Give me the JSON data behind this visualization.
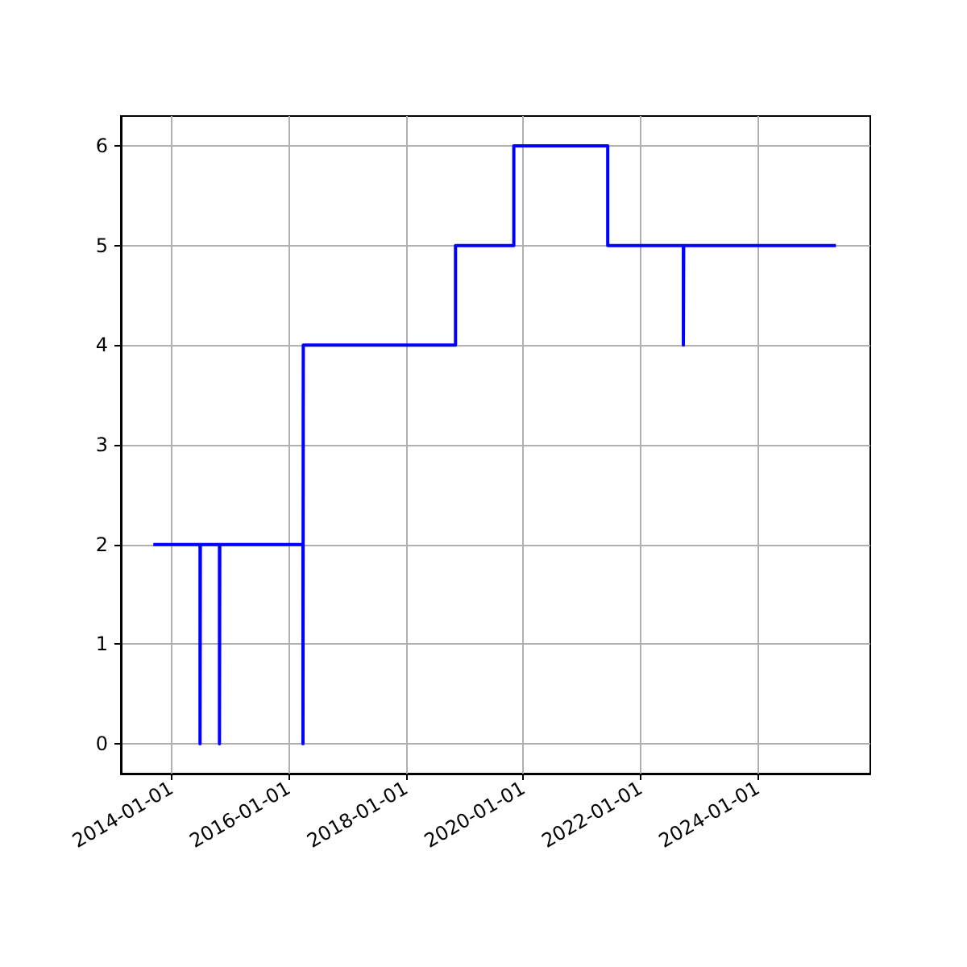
{
  "chart_data": {
    "type": "step",
    "x": [
      "2013-09-10",
      "2014-06-28",
      "2014-06-30",
      "2014-10-27",
      "2014-10-29",
      "2016-03-30",
      "2016-04-01",
      "2018-11-05",
      "2019-11-03",
      "2021-06-10",
      "2022-09-24",
      "2022-09-26",
      "2025-05-01"
    ],
    "series": [
      {
        "color": "#0000ff",
        "values": [
          2,
          0,
          2,
          0,
          2,
          0,
          4,
          5,
          6,
          5,
          4,
          5,
          5
        ]
      }
    ],
    "xlim": [
      "2013-02-20",
      "2025-12-01"
    ],
    "xticks": [
      "2014-01-01",
      "2016-01-01",
      "2018-01-01",
      "2020-01-01",
      "2022-01-01",
      "2024-01-01"
    ],
    "ylim": [
      -0.3,
      6.3
    ],
    "yticks": [
      0,
      1,
      2,
      3,
      4,
      5,
      6
    ],
    "grid": true,
    "marker": "none",
    "line_style": "solid"
  }
}
